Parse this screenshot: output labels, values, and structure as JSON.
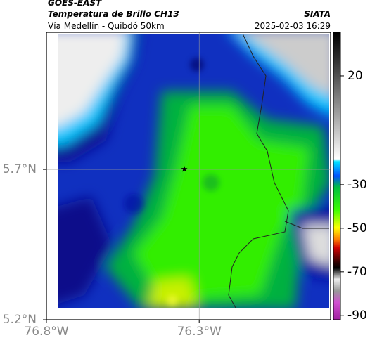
{
  "header": {
    "satellite": "GOES-EAST",
    "product": "Temperatura de Brillo CH13",
    "region": "Vía Medellín - Quibdó 50km",
    "source": "SIATA",
    "datetime": "2025-02-03 16:29"
  },
  "map": {
    "xlim": [
      -76.8,
      -75.87
    ],
    "ylim": [
      5.2,
      6.156
    ],
    "xticks": [
      {
        "value": -76.8,
        "label": "76.8°W"
      },
      {
        "value": -76.3,
        "label": "76.3°W"
      }
    ],
    "yticks": [
      {
        "value": 5.2,
        "label": "5.2°N"
      },
      {
        "value": 5.7,
        "label": "5.7°N"
      }
    ],
    "grid": true
  },
  "colorbar": {
    "clim": [
      -92,
      40
    ],
    "ticks": [
      20,
      -30,
      -50,
      -70,
      -90
    ]
  }
}
